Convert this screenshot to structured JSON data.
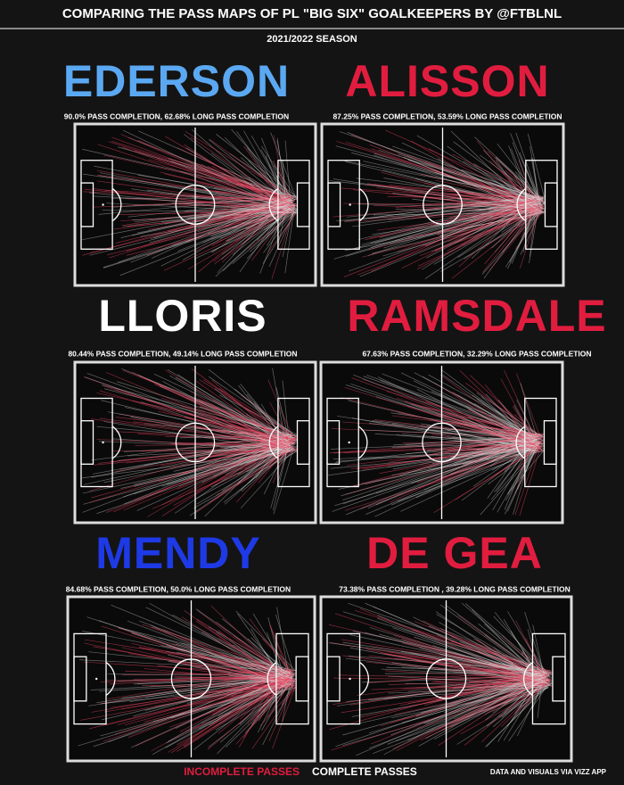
{
  "header": {
    "title": "COMPARING THE PASS MAPS OF PL \"BIG SIX\" GOALKEEPERS BY @FTBLNL",
    "season": "2021/2022 SEASON"
  },
  "panels": [
    {
      "name": "EDERSON",
      "color": "#5ba8f2",
      "stats": "90.0% PASS COMPLETION, 62.68% LONG PASS COMPLETION"
    },
    {
      "name": "ALISSON",
      "color": "#e11d3f",
      "stats": "87.25% PASS COMPLETION, 53.59% LONG PASS COMPLETION"
    },
    {
      "name": "LLORIS",
      "color": "#ffffff",
      "stats": "80.44% PASS COMPLETION, 49.14% LONG PASS COMPLETION"
    },
    {
      "name": "RAMSDALE",
      "color": "#e11d3f",
      "stats": "67.63% PASS COMPLETION, 32.29% LONG PASS COMPLETION"
    },
    {
      "name": "MENDY",
      "color": "#1e3ae6",
      "stats": "84.68% PASS COMPLETION, 50.0% LONG PASS COMPLETION"
    },
    {
      "name": "DE GEA",
      "color": "#e11d3f",
      "stats": "73.38% PASS COMPLETION , 39.28% LONG PASS COMPLETION"
    }
  ],
  "legend": {
    "incomplete": "INCOMPLETE PASSES",
    "complete": "COMPLETE PASSES"
  },
  "credit": "DATA AND VISUALS VIA VIZZ APP"
}
